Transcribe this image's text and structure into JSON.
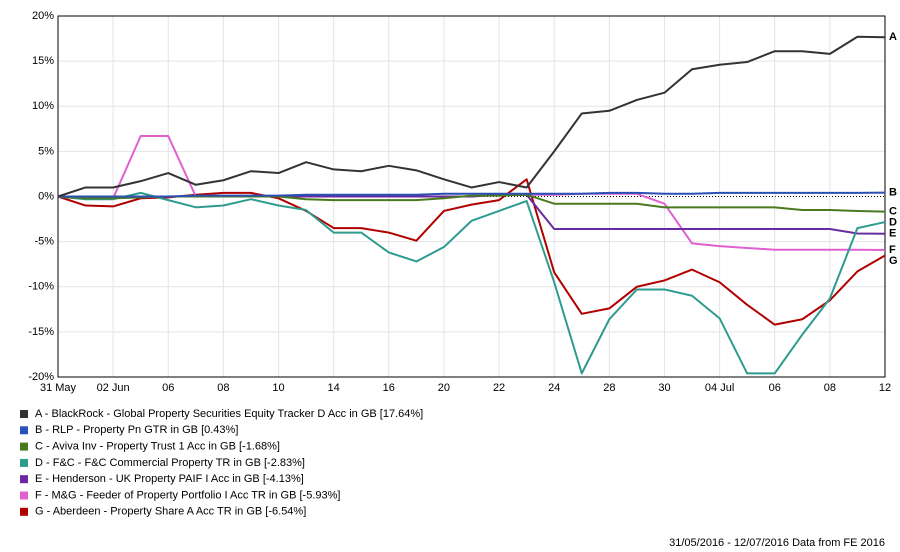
{
  "chart_data": {
    "type": "line",
    "categories": [
      "31 May",
      null,
      "02 Jun",
      null,
      "06",
      null,
      "08",
      null,
      "10",
      null,
      "14",
      null,
      "16",
      null,
      "20",
      null,
      "22",
      null,
      "24",
      null,
      "28",
      null,
      "30",
      null,
      "04 Jul",
      null,
      "06",
      null,
      "08",
      null,
      "12"
    ],
    "ylim": [
      -20,
      20
    ],
    "yticks": [
      {
        "value": -20,
        "label": "-20%"
      },
      {
        "value": -15,
        "label": "-15%"
      },
      {
        "value": -10,
        "label": "-10%"
      },
      {
        "value": -5,
        "label": "-5%"
      },
      {
        "value": 0,
        "label": "0%"
      },
      {
        "value": 5,
        "label": "5%"
      },
      {
        "value": 10,
        "label": "10%"
      },
      {
        "value": 15,
        "label": "15%"
      },
      {
        "value": 20,
        "label": "20%"
      }
    ],
    "grid": true,
    "series": [
      {
        "name": "A - BlackRock - Global Property Securities Equity Tracker D Acc in GB [17.64%]",
        "letter": "A",
        "color": "#333333",
        "values": [
          0,
          1.0,
          1.0,
          1.7,
          2.6,
          1.3,
          1.8,
          2.8,
          2.6,
          3.8,
          3.0,
          2.8,
          3.4,
          2.9,
          1.9,
          1.0,
          1.6,
          1.0,
          5.0,
          9.2,
          9.5,
          10.7,
          11.5,
          14.1,
          14.6,
          14.9,
          16.1,
          16.1,
          15.8,
          17.7,
          17.64
        ]
      },
      {
        "name": "B - RLP - Property Pn GTR in GB [0.43%]",
        "letter": "B",
        "color": "#2a4fb5",
        "values": [
          0,
          0,
          0,
          0,
          0,
          0.1,
          0.1,
          0.1,
          0.1,
          0.2,
          0.2,
          0.2,
          0.2,
          0.2,
          0.3,
          0.3,
          0.3,
          0.3,
          0.3,
          0.3,
          0.4,
          0.4,
          0.3,
          0.3,
          0.4,
          0.4,
          0.4,
          0.4,
          0.4,
          0.4,
          0.43
        ]
      },
      {
        "name": "C - Aviva Inv - Property Trust 1 Acc in GB [-1.68%]",
        "letter": "C",
        "color": "#4a7a1e",
        "values": [
          0,
          -0.2,
          -0.2,
          -0.1,
          0,
          0,
          0,
          0,
          0,
          -0.3,
          -0.4,
          -0.4,
          -0.4,
          -0.4,
          -0.2,
          0.1,
          0.1,
          0.2,
          -0.8,
          -0.8,
          -0.8,
          -0.8,
          -1.2,
          -1.2,
          -1.2,
          -1.2,
          -1.2,
          -1.5,
          -1.5,
          -1.6,
          -1.68
        ]
      },
      {
        "name": "D - F&C - F&C Commercial Property TR in GB [-2.83%]",
        "letter": "D",
        "color": "#2e9b8f",
        "values": [
          0,
          -0.3,
          -0.3,
          0.4,
          -0.4,
          -1.2,
          -1.0,
          -0.3,
          -1.0,
          -1.5,
          -4.0,
          -4.0,
          -6.2,
          -7.2,
          -5.6,
          -2.7,
          -1.6,
          -0.5,
          -9.5,
          -19.6,
          -13.6,
          -10.3,
          -10.3,
          -11.0,
          -13.5,
          -19.6,
          -19.6,
          -15.3,
          -11.3,
          -3.5,
          -2.83
        ]
      },
      {
        "name": "E - Henderson - UK Property PAIF I Acc in GB [-4.13%]",
        "letter": "E",
        "color": "#6a2aa0",
        "values": [
          0,
          0,
          0,
          0,
          0,
          0,
          0,
          0,
          0,
          0,
          0,
          0,
          0,
          0,
          0,
          0,
          0.2,
          0.2,
          -3.6,
          -3.6,
          -3.6,
          -3.6,
          -3.6,
          -3.6,
          -3.6,
          -3.6,
          -3.6,
          -3.6,
          -3.6,
          -4.1,
          -4.13
        ]
      },
      {
        "name": "F - M&G - Feeder of Property Portfolio I Acc TR in GB [-5.93%]",
        "letter": "F",
        "color": "#e060d0",
        "values": [
          0,
          -0.2,
          -0.2,
          6.7,
          6.7,
          0,
          0,
          0,
          0,
          0,
          0,
          0,
          0,
          0,
          0,
          0,
          0.2,
          0.2,
          0.2,
          0.3,
          0.3,
          0.3,
          -0.8,
          -5.2,
          -5.5,
          -5.7,
          -5.9,
          -5.9,
          -5.9,
          -5.9,
          -5.93
        ]
      },
      {
        "name": "G - Aberdeen - Property Share A Acc TR in GB [-6.54%]",
        "letter": "G",
        "color": "#b00000",
        "values": [
          0,
          -1.0,
          -1.1,
          -0.2,
          -0.1,
          0.2,
          0.4,
          0.4,
          -0.2,
          -1.6,
          -3.5,
          -3.5,
          -4.0,
          -4.9,
          -1.6,
          -0.9,
          -0.4,
          1.9,
          -8.4,
          -13.0,
          -12.4,
          -10.0,
          -9.3,
          -8.1,
          -9.5,
          -12.0,
          -14.2,
          -13.6,
          -11.5,
          -8.3,
          -6.54
        ]
      }
    ],
    "footer": "31/05/2016 - 12/07/2016 Data from FE 2016"
  }
}
